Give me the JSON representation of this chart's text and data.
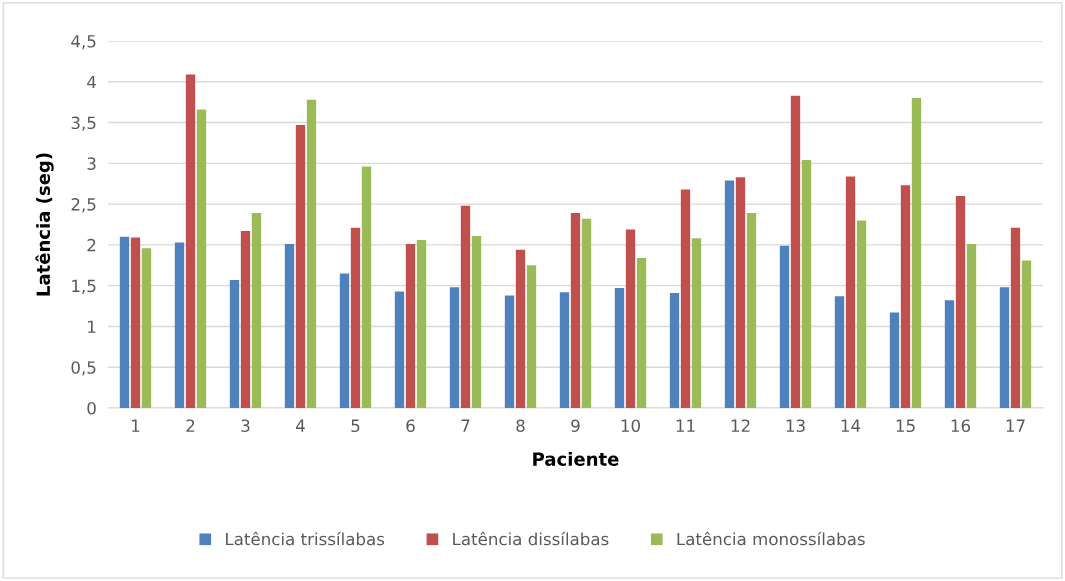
{
  "chart_data": {
    "type": "bar",
    "xlabel": "Paciente",
    "ylabel": "Latência (seg)",
    "categories": [
      "1",
      "2",
      "3",
      "4",
      "5",
      "6",
      "7",
      "8",
      "9",
      "10",
      "11",
      "12",
      "13",
      "14",
      "15",
      "16",
      "17"
    ],
    "series": [
      {
        "name": "Latência trissílabas",
        "color": "#4f81bd",
        "values": [
          2.1,
          2.03,
          1.57,
          2.01,
          1.65,
          1.43,
          1.48,
          1.38,
          1.42,
          1.47,
          1.41,
          2.79,
          1.99,
          1.37,
          1.17,
          1.32,
          1.48
        ]
      },
      {
        "name": "Latência dissílabas",
        "color": "#c0504d",
        "values": [
          2.09,
          4.09,
          2.17,
          3.47,
          2.21,
          2.01,
          2.48,
          1.94,
          2.39,
          2.19,
          2.68,
          2.83,
          3.83,
          2.84,
          2.73,
          2.6,
          2.21
        ]
      },
      {
        "name": "Latência monossílabas",
        "color": "#9bbb59",
        "values": [
          1.96,
          3.66,
          2.39,
          3.78,
          2.96,
          2.06,
          2.11,
          1.75,
          2.32,
          1.84,
          2.08,
          2.39,
          3.04,
          2.3,
          3.8,
          2.01,
          1.81
        ]
      }
    ],
    "ylim": [
      0,
      4.5
    ],
    "yticks": [
      0,
      {
        "value": 0.5,
        "label": "0,5"
      },
      1,
      {
        "value": 1.5,
        "label": "1,5"
      },
      2,
      {
        "value": 2.5,
        "label": "2,5"
      },
      3,
      {
        "value": 3.5,
        "label": "3,5"
      },
      4,
      {
        "value": 4.5,
        "label": "4,5"
      }
    ],
    "grid": "y",
    "legend": "bottom"
  }
}
